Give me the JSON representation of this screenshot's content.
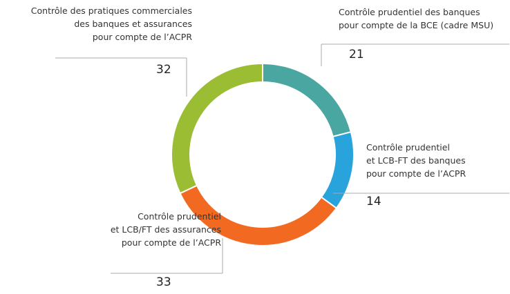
{
  "chart_data": {
    "type": "donut",
    "categories": [
      [
        "Contrôle prudentiel des banques",
        "pour compte de la BCE (cadre MSU)"
      ],
      [
        "Contrôle prudentiel",
        "et LCB-FT des banques",
        "pour compte de l’ACPR"
      ],
      [
        "Contrôle prudentiel",
        "et LCB/FT des assurances",
        "pour compte de l’ACPR"
      ],
      [
        "Contrôle des pratiques commerciales",
        "des banques et assurances",
        "pour compte de l’ACPR"
      ]
    ],
    "values": [
      21,
      14,
      33,
      32
    ],
    "colors": [
      "#4aa6a0",
      "#29a3dc",
      "#f26a22",
      "#9abd33"
    ]
  }
}
